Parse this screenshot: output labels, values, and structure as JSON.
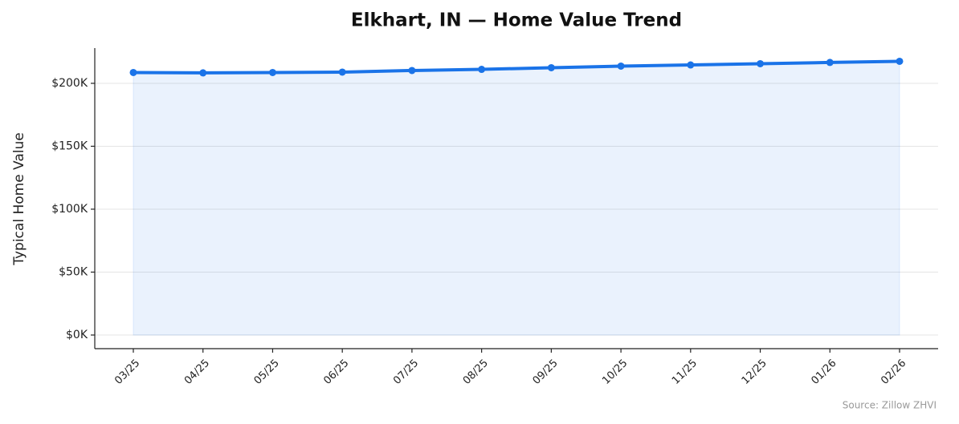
{
  "chart_data": {
    "type": "line",
    "title": "Elkhart, IN — Home Value Trend",
    "y_label": "Typical Home Value",
    "source": "Source: Zillow ZHVI",
    "categories": [
      "03/25",
      "04/25",
      "05/25",
      "06/25",
      "07/25",
      "08/25",
      "09/25",
      "10/25",
      "11/25",
      "12/25",
      "01/26",
      "02/26"
    ],
    "values": [
      208600,
      208300,
      208600,
      208900,
      210200,
      211100,
      212400,
      213700,
      214600,
      215600,
      216600,
      217500
    ],
    "color": "#1a73e8",
    "area": true,
    "grid": true,
    "ylim": [
      -10830,
      228000
    ],
    "yticks": [
      {
        "value": 0,
        "label": "$0K"
      },
      {
        "value": 50000,
        "label": "$50K"
      },
      {
        "value": 100000,
        "label": "$100K"
      },
      {
        "value": 150000,
        "label": "$150K"
      },
      {
        "value": 200000,
        "label": "$200K"
      }
    ]
  }
}
